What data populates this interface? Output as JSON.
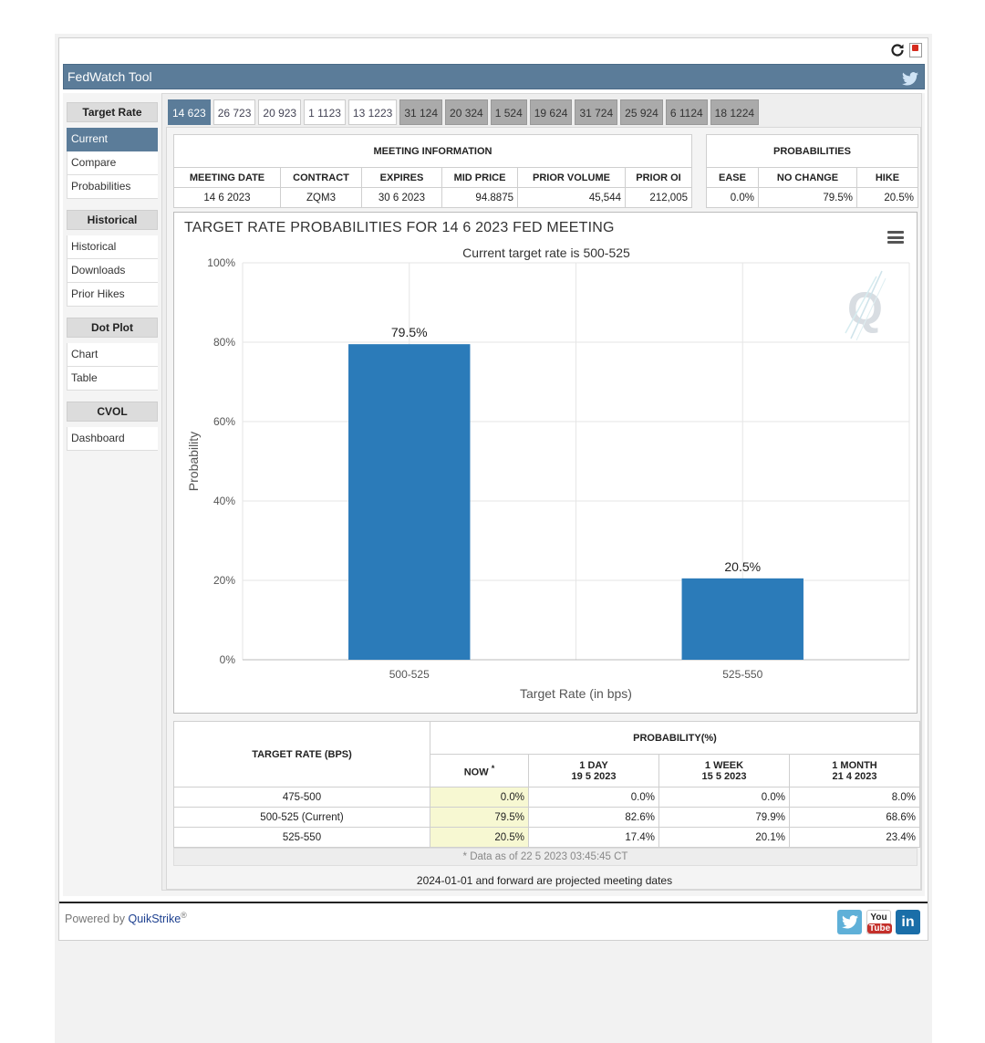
{
  "app": {
    "title": "FedWatch Tool"
  },
  "sidebar": {
    "sections": [
      {
        "heading": "Target Rate",
        "items": [
          "Current",
          "Compare",
          "Probabilities"
        ]
      },
      {
        "heading": "Historical",
        "items": [
          "Historical",
          "Downloads",
          "Prior Hikes"
        ]
      },
      {
        "heading": "Dot Plot",
        "items": [
          "Chart",
          "Table"
        ]
      },
      {
        "heading": "CVOL",
        "items": [
          "Dashboard"
        ]
      }
    ],
    "active_item": "Current"
  },
  "meeting_tabs": [
    {
      "label": "14 623",
      "state": "active"
    },
    {
      "label": "26 723",
      "state": "normal"
    },
    {
      "label": "20 923",
      "state": "normal"
    },
    {
      "label": "1 1123",
      "state": "normal"
    },
    {
      "label": "13 1223",
      "state": "normal"
    },
    {
      "label": "31 124",
      "state": "projected"
    },
    {
      "label": "20 324",
      "state": "projected"
    },
    {
      "label": "1 524",
      "state": "projected"
    },
    {
      "label": "19 624",
      "state": "projected"
    },
    {
      "label": "31 724",
      "state": "projected"
    },
    {
      "label": "25 924",
      "state": "projected"
    },
    {
      "label": "6 1124",
      "state": "projected"
    },
    {
      "label": "18 1224",
      "state": "projected"
    }
  ],
  "meeting_info": {
    "heading": "MEETING INFORMATION",
    "columns": [
      "MEETING DATE",
      "CONTRACT",
      "EXPIRES",
      "MID PRICE",
      "PRIOR VOLUME",
      "PRIOR OI"
    ],
    "row": [
      "14 6 2023",
      "ZQM3",
      "30 6 2023",
      "94.8875",
      "45,544",
      "212,005"
    ]
  },
  "probabilities": {
    "heading": "PROBABILITIES",
    "columns": [
      "EASE",
      "NO CHANGE",
      "HIKE"
    ],
    "row": [
      "0.0%",
      "79.5%",
      "20.5%"
    ]
  },
  "chart_data": {
    "type": "bar",
    "title": "TARGET RATE PROBABILITIES FOR 14 6 2023 FED MEETING",
    "subtitle": "Current target rate is 500-525",
    "categories": [
      "500-525",
      "525-550"
    ],
    "values": [
      79.5,
      20.5
    ],
    "data_labels": [
      "79.5%",
      "20.5%"
    ],
    "xlabel": "Target Rate (in bps)",
    "ylabel": "Probability",
    "ylim": [
      0,
      100
    ],
    "yticks": [
      "0%",
      "20%",
      "40%",
      "60%",
      "80%",
      "100%"
    ],
    "ytick_values": [
      0,
      20,
      40,
      60,
      80,
      100
    ],
    "grid": true,
    "bar_color": "#2b7bb9"
  },
  "prob_table": {
    "col_target": "TARGET RATE (BPS)",
    "col_group": "PROBABILITY(%)",
    "col_now": "NOW",
    "now_mark": "*",
    "col_1day": "1 DAY",
    "col_1day_date": "19 5 2023",
    "col_1week": "1 WEEK",
    "col_1week_date": "15 5 2023",
    "col_1month": "1 MONTH",
    "col_1month_date": "21 4 2023",
    "rows": [
      [
        "475-500",
        "0.0%",
        "0.0%",
        "0.0%",
        "8.0%"
      ],
      [
        "500-525 (Current)",
        "79.5%",
        "82.6%",
        "79.9%",
        "68.6%"
      ],
      [
        "525-550",
        "20.5%",
        "17.4%",
        "20.1%",
        "23.4%"
      ]
    ]
  },
  "footnote": "* Data as of 22 5 2023 03:45:45 CT",
  "projected_note": "2024-01-01 and forward are projected meeting dates",
  "footer": {
    "powered_by": "Powered by",
    "brand": "QuikStrike",
    "reg": "®",
    "linkedin": "in",
    "youtube_you": "You",
    "youtube_tube": "Tube"
  },
  "icons": {
    "refresh": "refresh-icon",
    "pdf": "pdf-icon",
    "twitter": "twitter-icon",
    "menu": "chart-menu-icon",
    "watermark": "quikstrike-q-logo"
  }
}
